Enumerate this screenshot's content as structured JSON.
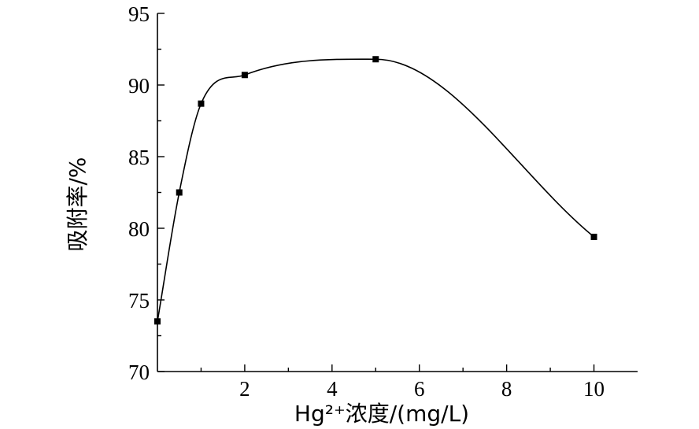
{
  "chart_data": {
    "type": "line",
    "x": [
      0,
      0.5,
      1,
      2,
      5,
      10
    ],
    "series": [
      {
        "values": [
          73.5,
          82.5,
          88.7,
          90.7,
          91.8,
          79.4
        ]
      }
    ],
    "xlim": [
      0,
      11
    ],
    "ylim": [
      70,
      95
    ],
    "xticks": [
      2,
      4,
      6,
      8,
      10
    ],
    "yticks": [
      70,
      75,
      80,
      85,
      90,
      95
    ],
    "xlabel": "Hg²⁺浓度/(mg/L)",
    "ylabel": "吸附率/%",
    "title": "",
    "grid": false,
    "marker": "square",
    "colors": {
      "line": "#000000",
      "marker": "#000000"
    }
  }
}
